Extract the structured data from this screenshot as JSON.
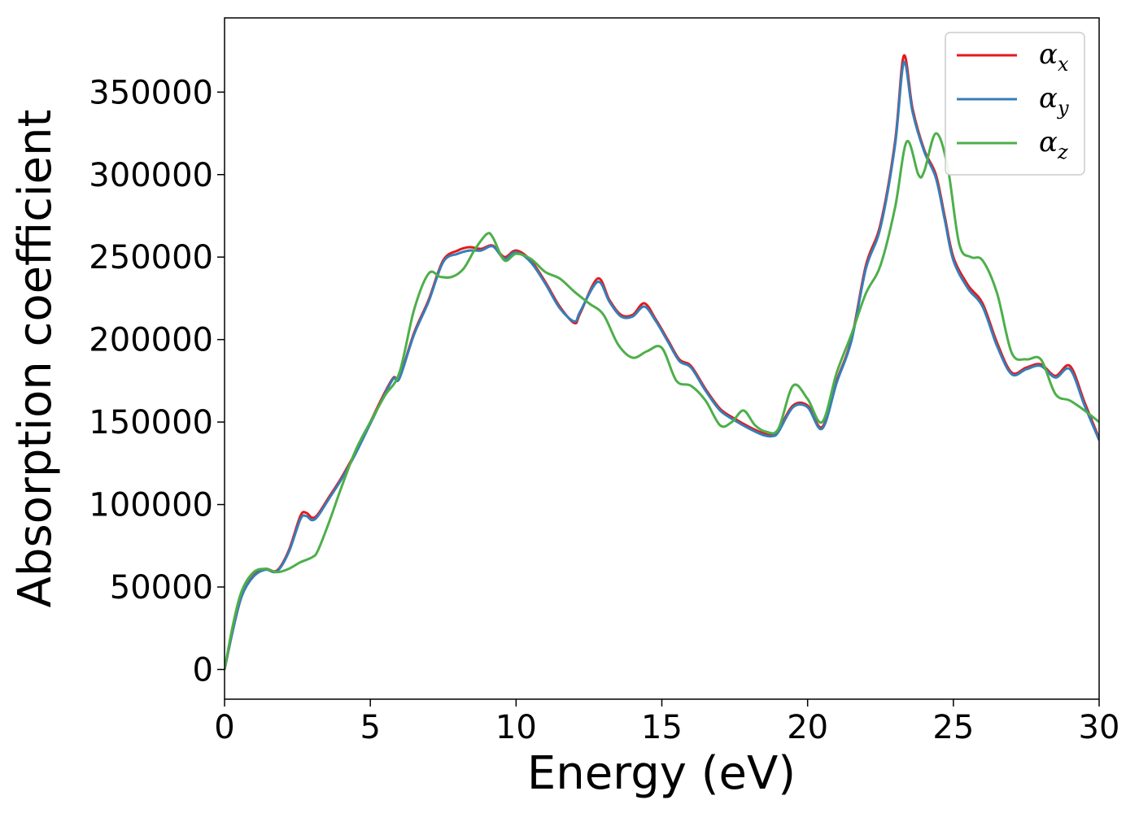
{
  "chart_data": {
    "type": "line",
    "title": "",
    "xlabel": "Energy (eV)",
    "ylabel": "Absorption coefficient",
    "xlim": [
      0,
      30
    ],
    "ylim": [
      -18000,
      395000
    ],
    "x_ticks": [
      0,
      5,
      10,
      15,
      20,
      25,
      30
    ],
    "y_ticks": [
      0,
      50000,
      100000,
      150000,
      200000,
      250000,
      300000,
      350000
    ],
    "grid": false,
    "legend_position": "top-right",
    "series": [
      {
        "name": "α_x",
        "label_main": "α",
        "label_sub": "x",
        "color": "#e41a1c",
        "x": [
          0,
          0.3,
          0.6,
          1.0,
          1.4,
          1.8,
          2.2,
          2.6,
          2.8,
          3.0,
          3.2,
          3.6,
          4.0,
          4.5,
          5.0,
          5.5,
          5.8,
          6.0,
          6.5,
          7.0,
          7.5,
          8.0,
          8.4,
          8.8,
          9.2,
          9.6,
          10.0,
          10.5,
          11.0,
          11.5,
          12.0,
          12.2,
          12.8,
          13.2,
          13.6,
          14.0,
          14.4,
          14.8,
          15.2,
          15.6,
          16.0,
          16.5,
          17.0,
          17.5,
          18.0,
          18.5,
          18.8,
          19.0,
          19.5,
          20.0,
          20.5,
          21.0,
          21.5,
          22.0,
          22.5,
          23.0,
          23.3,
          23.6,
          24.0,
          24.4,
          24.7,
          25.0,
          25.5,
          26.0,
          26.5,
          27.0,
          27.5,
          28.0,
          28.5,
          29.0,
          29.5,
          30.0
        ],
        "y": [
          0,
          25000,
          45000,
          57000,
          61000,
          60000,
          72000,
          93000,
          95000,
          92000,
          94000,
          105000,
          116000,
          132000,
          150000,
          168000,
          177000,
          177000,
          204000,
          224000,
          248000,
          254000,
          256000,
          255000,
          257000,
          250000,
          254000,
          248000,
          235000,
          220000,
          210000,
          216000,
          237000,
          224000,
          215000,
          215000,
          222000,
          212000,
          200000,
          188000,
          184000,
          170000,
          158000,
          152000,
          147000,
          143000,
          142000,
          145000,
          160000,
          160000,
          147000,
          175000,
          200000,
          245000,
          270000,
          320000,
          372000,
          340000,
          315000,
          300000,
          275000,
          250000,
          233000,
          222000,
          198000,
          180000,
          183000,
          185000,
          178000,
          184000,
          162000,
          140000
        ]
      },
      {
        "name": "α_y",
        "label_main": "α",
        "label_sub": "y",
        "color": "#377eb8",
        "x": [
          0,
          0.3,
          0.6,
          1.0,
          1.4,
          1.8,
          2.2,
          2.6,
          2.8,
          3.0,
          3.2,
          3.6,
          4.0,
          4.5,
          5.0,
          5.5,
          5.8,
          6.0,
          6.5,
          7.0,
          7.5,
          8.0,
          8.4,
          8.8,
          9.2,
          9.6,
          10.0,
          10.5,
          11.0,
          11.5,
          12.0,
          12.2,
          12.8,
          13.2,
          13.6,
          14.0,
          14.4,
          14.8,
          15.2,
          15.6,
          16.0,
          16.5,
          17.0,
          17.5,
          18.0,
          18.5,
          18.8,
          19.0,
          19.5,
          20.0,
          20.5,
          21.0,
          21.5,
          22.0,
          22.5,
          23.0,
          23.3,
          23.6,
          24.0,
          24.4,
          24.7,
          25.0,
          25.5,
          26.0,
          26.5,
          27.0,
          27.5,
          28.0,
          28.5,
          29.0,
          29.5,
          30.0
        ],
        "y": [
          0,
          25000,
          45000,
          56500,
          60500,
          59500,
          71000,
          91000,
          93000,
          90500,
          93000,
          104000,
          115000,
          131000,
          149000,
          167000,
          176500,
          176500,
          203000,
          223000,
          247000,
          252000,
          254000,
          254000,
          256500,
          249000,
          253000,
          247000,
          234000,
          219000,
          211000,
          217000,
          235000,
          223000,
          214000,
          214000,
          220000,
          211000,
          199000,
          187000,
          183000,
          169000,
          157000,
          151000,
          146000,
          142000,
          141500,
          144000,
          159000,
          159000,
          146000,
          174000,
          199000,
          243000,
          268000,
          318000,
          368000,
          338000,
          314000,
          298000,
          273000,
          248000,
          231000,
          220000,
          196000,
          179000,
          182000,
          184000,
          177000,
          182000,
          160000,
          139000
        ]
      },
      {
        "name": "α_z",
        "label_main": "α",
        "label_sub": "z",
        "color": "#4daf4a",
        "x": [
          0,
          0.3,
          0.6,
          1.0,
          1.4,
          1.8,
          2.2,
          2.6,
          3.0,
          3.2,
          3.6,
          4.0,
          4.5,
          5.0,
          5.5,
          6.0,
          6.5,
          7.0,
          7.4,
          7.8,
          8.2,
          8.6,
          9.0,
          9.2,
          9.6,
          10.0,
          10.5,
          11.0,
          11.5,
          12.0,
          12.5,
          13.0,
          13.5,
          14.0,
          14.5,
          15.0,
          15.5,
          16.0,
          16.5,
          17.0,
          17.4,
          17.8,
          18.2,
          18.6,
          19.0,
          19.5,
          20.0,
          20.5,
          21.0,
          21.5,
          22.0,
          22.5,
          23.0,
          23.4,
          23.8,
          24.0,
          24.4,
          24.8,
          25.2,
          25.6,
          26.0,
          26.5,
          27.0,
          27.5,
          28.0,
          28.5,
          29.0,
          29.5,
          30.0
        ],
        "y": [
          0,
          28000,
          48000,
          59000,
          61000,
          59000,
          61000,
          65000,
          68000,
          72000,
          90000,
          110000,
          133000,
          150000,
          166000,
          180000,
          218000,
          240000,
          238000,
          238000,
          243000,
          255000,
          264000,
          262000,
          248000,
          252000,
          249000,
          241000,
          237000,
          229000,
          222000,
          215000,
          197000,
          189000,
          193000,
          195000,
          175000,
          172000,
          163000,
          148000,
          150000,
          157000,
          148000,
          144000,
          146000,
          172000,
          164000,
          150000,
          180000,
          203000,
          228000,
          245000,
          280000,
          320000,
          300000,
          302000,
          325000,
          305000,
          258000,
          250000,
          248000,
          228000,
          192000,
          188000,
          188000,
          167000,
          163000,
          157000,
          150000
        ]
      }
    ]
  }
}
